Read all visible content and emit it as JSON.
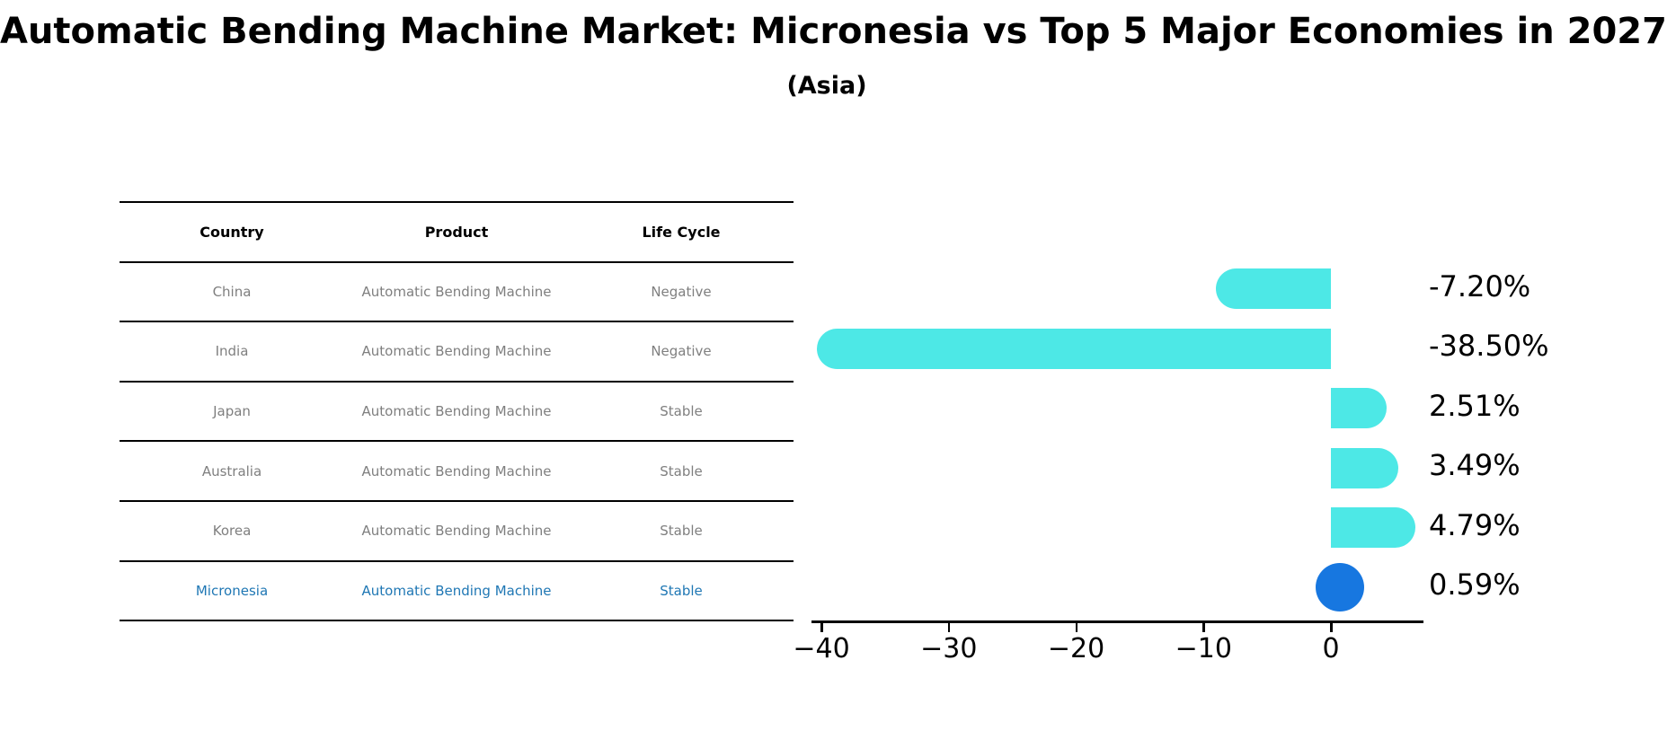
{
  "header": {
    "title": "Automatic Bending Machine Market: Micronesia vs Top 5 Major Economies in 2027",
    "subtitle": "(Asia)"
  },
  "table": {
    "columns": [
      "Country",
      "Product",
      "Life Cycle"
    ],
    "rows": [
      {
        "country": "China",
        "product": "Automatic Bending Machine",
        "life_cycle": "Negative",
        "highlight": false
      },
      {
        "country": "India",
        "product": "Automatic Bending Machine",
        "life_cycle": "Negative",
        "highlight": false
      },
      {
        "country": "Japan",
        "product": "Automatic Bending Machine",
        "life_cycle": "Stable",
        "highlight": false
      },
      {
        "country": "Australia",
        "product": "Automatic Bending Machine",
        "life_cycle": "Stable",
        "highlight": false
      },
      {
        "country": "Korea",
        "product": "Automatic Bending Machine",
        "life_cycle": "Stable",
        "highlight": false
      },
      {
        "country": "Micronesia",
        "product": "Automatic Bending Machine",
        "life_cycle": "Stable",
        "highlight": true
      }
    ]
  },
  "chart_data": {
    "type": "bar",
    "orientation": "horizontal",
    "title": "",
    "xlabel": "",
    "ylabel": "",
    "categories": [
      "China",
      "India",
      "Japan",
      "Australia",
      "Korea",
      "Micronesia"
    ],
    "values": [
      -7.2,
      -38.5,
      2.51,
      3.49,
      4.79,
      0.59
    ],
    "value_labels": [
      "-7.20%",
      "-38.50%",
      "2.51%",
      "3.49%",
      "4.79%",
      "0.59%"
    ],
    "x_tick_labels": [
      "−40",
      "−30",
      "−20",
      "−10",
      "0"
    ],
    "x_tick_values": [
      -40,
      -30,
      -20,
      -10,
      0
    ],
    "xlim": [
      -40.8,
      7.2
    ],
    "grid": false,
    "legend": null,
    "bar_color": "#4DE8E6",
    "highlight_color": "#1777E0",
    "highlight_index": 5,
    "bar_style": "rounded-cap"
  },
  "colors": {
    "table_header_text": "#000000",
    "table_body_text": "#7f7f7f",
    "highlight_row_text": "#1f77b4",
    "axis": "#000000",
    "background": "#ffffff"
  }
}
